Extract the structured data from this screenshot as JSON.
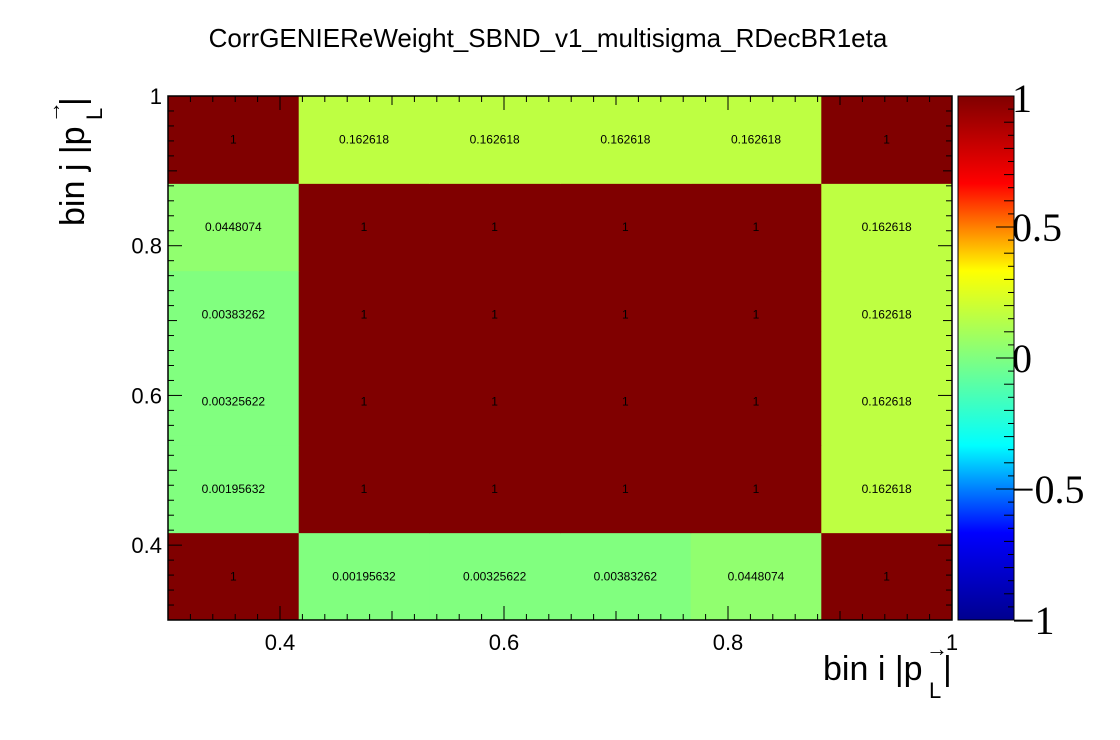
{
  "chart_data": {
    "type": "heatmap",
    "title": "CorrGENIEReWeight_SBND_v1_multisigma_RDecBR1eta",
    "xlabel": {
      "main": "bin i |p",
      "arrow": "→",
      "sub": "L",
      "close": "|"
    },
    "ylabel": {
      "main": "bin j |p",
      "arrow": "→",
      "sub": "L",
      "close": "|"
    },
    "xlim": [
      0.3,
      1.0
    ],
    "ylim": [
      0.3,
      1.0
    ],
    "x_edges": [
      0.3,
      0.4167,
      0.5333,
      0.65,
      0.7667,
      0.8833,
      1.0
    ],
    "y_edges": [
      0.3,
      0.4167,
      0.5333,
      0.65,
      0.7667,
      0.8833,
      1.0
    ],
    "x_ticks": [
      {
        "value": 0.4,
        "label": "0.4"
      },
      {
        "value": 0.6,
        "label": "0.6"
      },
      {
        "value": 0.8,
        "label": "0.8"
      },
      {
        "value": 1.0,
        "label": "1"
      }
    ],
    "y_ticks": [
      {
        "value": 0.4,
        "label": "0.4"
      },
      {
        "value": 0.6,
        "label": "0.6"
      },
      {
        "value": 0.8,
        "label": "0.8"
      },
      {
        "value": 1.0,
        "label": "1"
      }
    ],
    "cells": [
      {
        "i": 0,
        "j": 0,
        "value": 1,
        "label": "1"
      },
      {
        "i": 1,
        "j": 0,
        "value": 0.00195632,
        "label": "0.00195632"
      },
      {
        "i": 2,
        "j": 0,
        "value": 0.00325622,
        "label": "0.00325622"
      },
      {
        "i": 3,
        "j": 0,
        "value": 0.00383262,
        "label": "0.00383262"
      },
      {
        "i": 4,
        "j": 0,
        "value": 0.0448074,
        "label": "0.0448074"
      },
      {
        "i": 5,
        "j": 0,
        "value": 1,
        "label": "1"
      },
      {
        "i": 0,
        "j": 1,
        "value": 0.00195632,
        "label": "0.00195632"
      },
      {
        "i": 1,
        "j": 1,
        "value": 1,
        "label": "1"
      },
      {
        "i": 2,
        "j": 1,
        "value": 1,
        "label": "1"
      },
      {
        "i": 3,
        "j": 1,
        "value": 1,
        "label": "1"
      },
      {
        "i": 4,
        "j": 1,
        "value": 1,
        "label": "1"
      },
      {
        "i": 5,
        "j": 1,
        "value": 0.162618,
        "label": "0.162618"
      },
      {
        "i": 0,
        "j": 2,
        "value": 0.00325622,
        "label": "0.00325622"
      },
      {
        "i": 1,
        "j": 2,
        "value": 1,
        "label": "1"
      },
      {
        "i": 2,
        "j": 2,
        "value": 1,
        "label": "1"
      },
      {
        "i": 3,
        "j": 2,
        "value": 1,
        "label": "1"
      },
      {
        "i": 4,
        "j": 2,
        "value": 1,
        "label": "1"
      },
      {
        "i": 5,
        "j": 2,
        "value": 0.162618,
        "label": "0.162618"
      },
      {
        "i": 0,
        "j": 3,
        "value": 0.00383262,
        "label": "0.00383262"
      },
      {
        "i": 1,
        "j": 3,
        "value": 1,
        "label": "1"
      },
      {
        "i": 2,
        "j": 3,
        "value": 1,
        "label": "1"
      },
      {
        "i": 3,
        "j": 3,
        "value": 1,
        "label": "1"
      },
      {
        "i": 4,
        "j": 3,
        "value": 1,
        "label": "1"
      },
      {
        "i": 5,
        "j": 3,
        "value": 0.162618,
        "label": "0.162618"
      },
      {
        "i": 0,
        "j": 4,
        "value": 0.0448074,
        "label": "0.0448074"
      },
      {
        "i": 1,
        "j": 4,
        "value": 1,
        "label": "1"
      },
      {
        "i": 2,
        "j": 4,
        "value": 1,
        "label": "1"
      },
      {
        "i": 3,
        "j": 4,
        "value": 1,
        "label": "1"
      },
      {
        "i": 4,
        "j": 4,
        "value": 1,
        "label": "1"
      },
      {
        "i": 5,
        "j": 4,
        "value": 0.162618,
        "label": "0.162618"
      },
      {
        "i": 0,
        "j": 5,
        "value": 1,
        "label": "1"
      },
      {
        "i": 1,
        "j": 5,
        "value": 0.162618,
        "label": "0.162618"
      },
      {
        "i": 2,
        "j": 5,
        "value": 0.162618,
        "label": "0.162618"
      },
      {
        "i": 3,
        "j": 5,
        "value": 0.162618,
        "label": "0.162618"
      },
      {
        "i": 4,
        "j": 5,
        "value": 0.162618,
        "label": "0.162618"
      },
      {
        "i": 5,
        "j": 5,
        "value": 1,
        "label": "1"
      }
    ],
    "colorbar": {
      "range": [
        -1,
        1
      ],
      "ticks": [
        {
          "value": 1,
          "label": "1"
        },
        {
          "value": 0.5,
          "label": "0.5"
        },
        {
          "value": 0,
          "label": "0"
        },
        {
          "value": -0.5,
          "label": "−0.5"
        },
        {
          "value": -1,
          "label": "−1"
        }
      ],
      "colormap": "jet",
      "colors": [
        "#00008f",
        "#0000ff",
        "#00ffff",
        "#80ff80",
        "#ffff00",
        "#ff0000",
        "#800000"
      ]
    },
    "grid": false,
    "legend": "none"
  }
}
